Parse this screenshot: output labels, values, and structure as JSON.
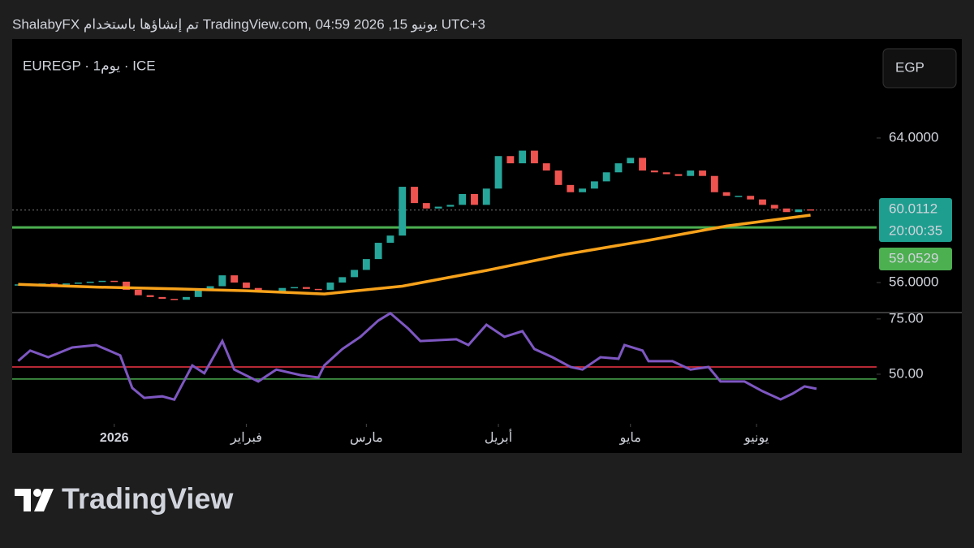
{
  "header": {
    "attribution": "ShalabyFX تم إنشاؤها باستخدام TradingView.com, يونيو 15, 2026 04:59 UTC+3",
    "symbol": "EUREGP · 1يوم · ICE",
    "currency": "EGP",
    "brand": "TradingView"
  },
  "chart_data": {
    "type": "candlestick",
    "x": [
      0,
      2,
      4,
      6,
      8,
      10,
      12,
      14,
      16,
      18,
      20,
      22,
      24,
      26,
      28,
      30,
      32,
      34,
      36,
      38,
      40,
      42,
      44,
      46,
      48,
      50,
      52,
      54,
      56,
      58,
      60,
      62,
      64,
      66,
      68,
      70,
      72,
      74,
      76,
      78,
      80,
      82,
      84,
      86,
      88,
      90,
      92,
      94,
      96,
      98,
      100,
      102,
      104,
      106,
      108,
      110,
      112,
      114,
      116,
      118,
      120,
      122,
      124,
      126,
      128,
      130,
      132
    ],
    "close": [
      55.9,
      55.85,
      55.95,
      55.9,
      55.95,
      56.0,
      56.05,
      56.1,
      56.05,
      55.6,
      55.3,
      55.2,
      55.1,
      55.05,
      55.2,
      55.6,
      55.8,
      56.4,
      56.0,
      55.7,
      55.55,
      55.5,
      55.7,
      55.75,
      55.65,
      55.6,
      56.0,
      56.3,
      56.7,
      57.3,
      58.2,
      58.6,
      61.3,
      60.4,
      60.1,
      60.2,
      60.3,
      60.9,
      60.3,
      61.2,
      63.0,
      62.6,
      63.3,
      62.6,
      62.2,
      61.4,
      61.0,
      61.2,
      61.6,
      62.1,
      62.6,
      62.9,
      62.2,
      62.1,
      62.0,
      61.9,
      62.2,
      61.9,
      61.0,
      60.8,
      60.8,
      60.6,
      60.3,
      60.1,
      59.9,
      60.05,
      60.01
    ],
    "up_color": "#26a69a",
    "down_color": "#ef5350",
    "xlim": [
      -1,
      143
    ],
    "xticks": [
      {
        "value": 16,
        "label": "2026"
      },
      {
        "value": 38,
        "label": "فبراير"
      },
      {
        "value": 58,
        "label": "مارس"
      },
      {
        "value": 80,
        "label": "أبريل"
      },
      {
        "value": 102,
        "label": "مايو"
      },
      {
        "value": 123,
        "label": "يونيو"
      }
    ],
    "ylim": [
      54.34,
      69.48
    ],
    "yticks": [
      {
        "value": 56,
        "label": "56.0000"
      },
      {
        "value": 64,
        "label": "64.0000"
      }
    ],
    "moving_average": {
      "x": [
        0,
        13,
        26,
        38,
        51,
        64,
        78,
        91,
        105,
        118,
        132
      ],
      "values": [
        55.9,
        55.75,
        55.65,
        55.55,
        55.37,
        55.8,
        56.67,
        57.55,
        58.34,
        59.13,
        59.73
      ],
      "color": "#f7a21b"
    },
    "price_lines": [
      {
        "value": 60.0112,
        "color": "#1e9e8f",
        "countdown": "20:00:35"
      },
      {
        "value": 59.0529,
        "color": "#4caf50"
      }
    ],
    "indicator": {
      "x": [
        0,
        2,
        5,
        9,
        13,
        17,
        19,
        21,
        24,
        26,
        29,
        31,
        34,
        36,
        40,
        43,
        47,
        50,
        51,
        54,
        57,
        60,
        62,
        65,
        67,
        73,
        75,
        78,
        81,
        84,
        86,
        89,
        92,
        94,
        97,
        100,
        101,
        104,
        105,
        109,
        112,
        115,
        117,
        121,
        124,
        127,
        129,
        131,
        133
      ],
      "values": [
        56.0,
        60.7,
        57.7,
        62.1,
        63.2,
        58.5,
        43.8,
        39.3,
        40.0,
        38.5,
        54.0,
        50.4,
        65.0,
        52.1,
        46.7,
        52.1,
        49.6,
        48.5,
        54.0,
        61.4,
        66.9,
        74.3,
        77.6,
        70.6,
        65.0,
        65.8,
        63.2,
        72.4,
        66.9,
        69.5,
        61.4,
        57.7,
        53.3,
        52.1,
        57.7,
        57.0,
        63.2,
        60.7,
        55.9,
        55.9,
        52.1,
        53.3,
        46.7,
        46.7,
        42.3,
        38.6,
        41.2,
        44.5,
        43.4
      ],
      "color": "#7e57c2",
      "ylim": [
        28.3,
        77.9
      ],
      "yticks": [
        {
          "value": 50,
          "label": "50.00"
        },
        {
          "value": 75,
          "label": "75.00"
        }
      ],
      "levels": [
        {
          "value": 53.3,
          "color": "#f23645"
        },
        {
          "value": 47.8,
          "color": "#4caf50"
        }
      ]
    }
  }
}
